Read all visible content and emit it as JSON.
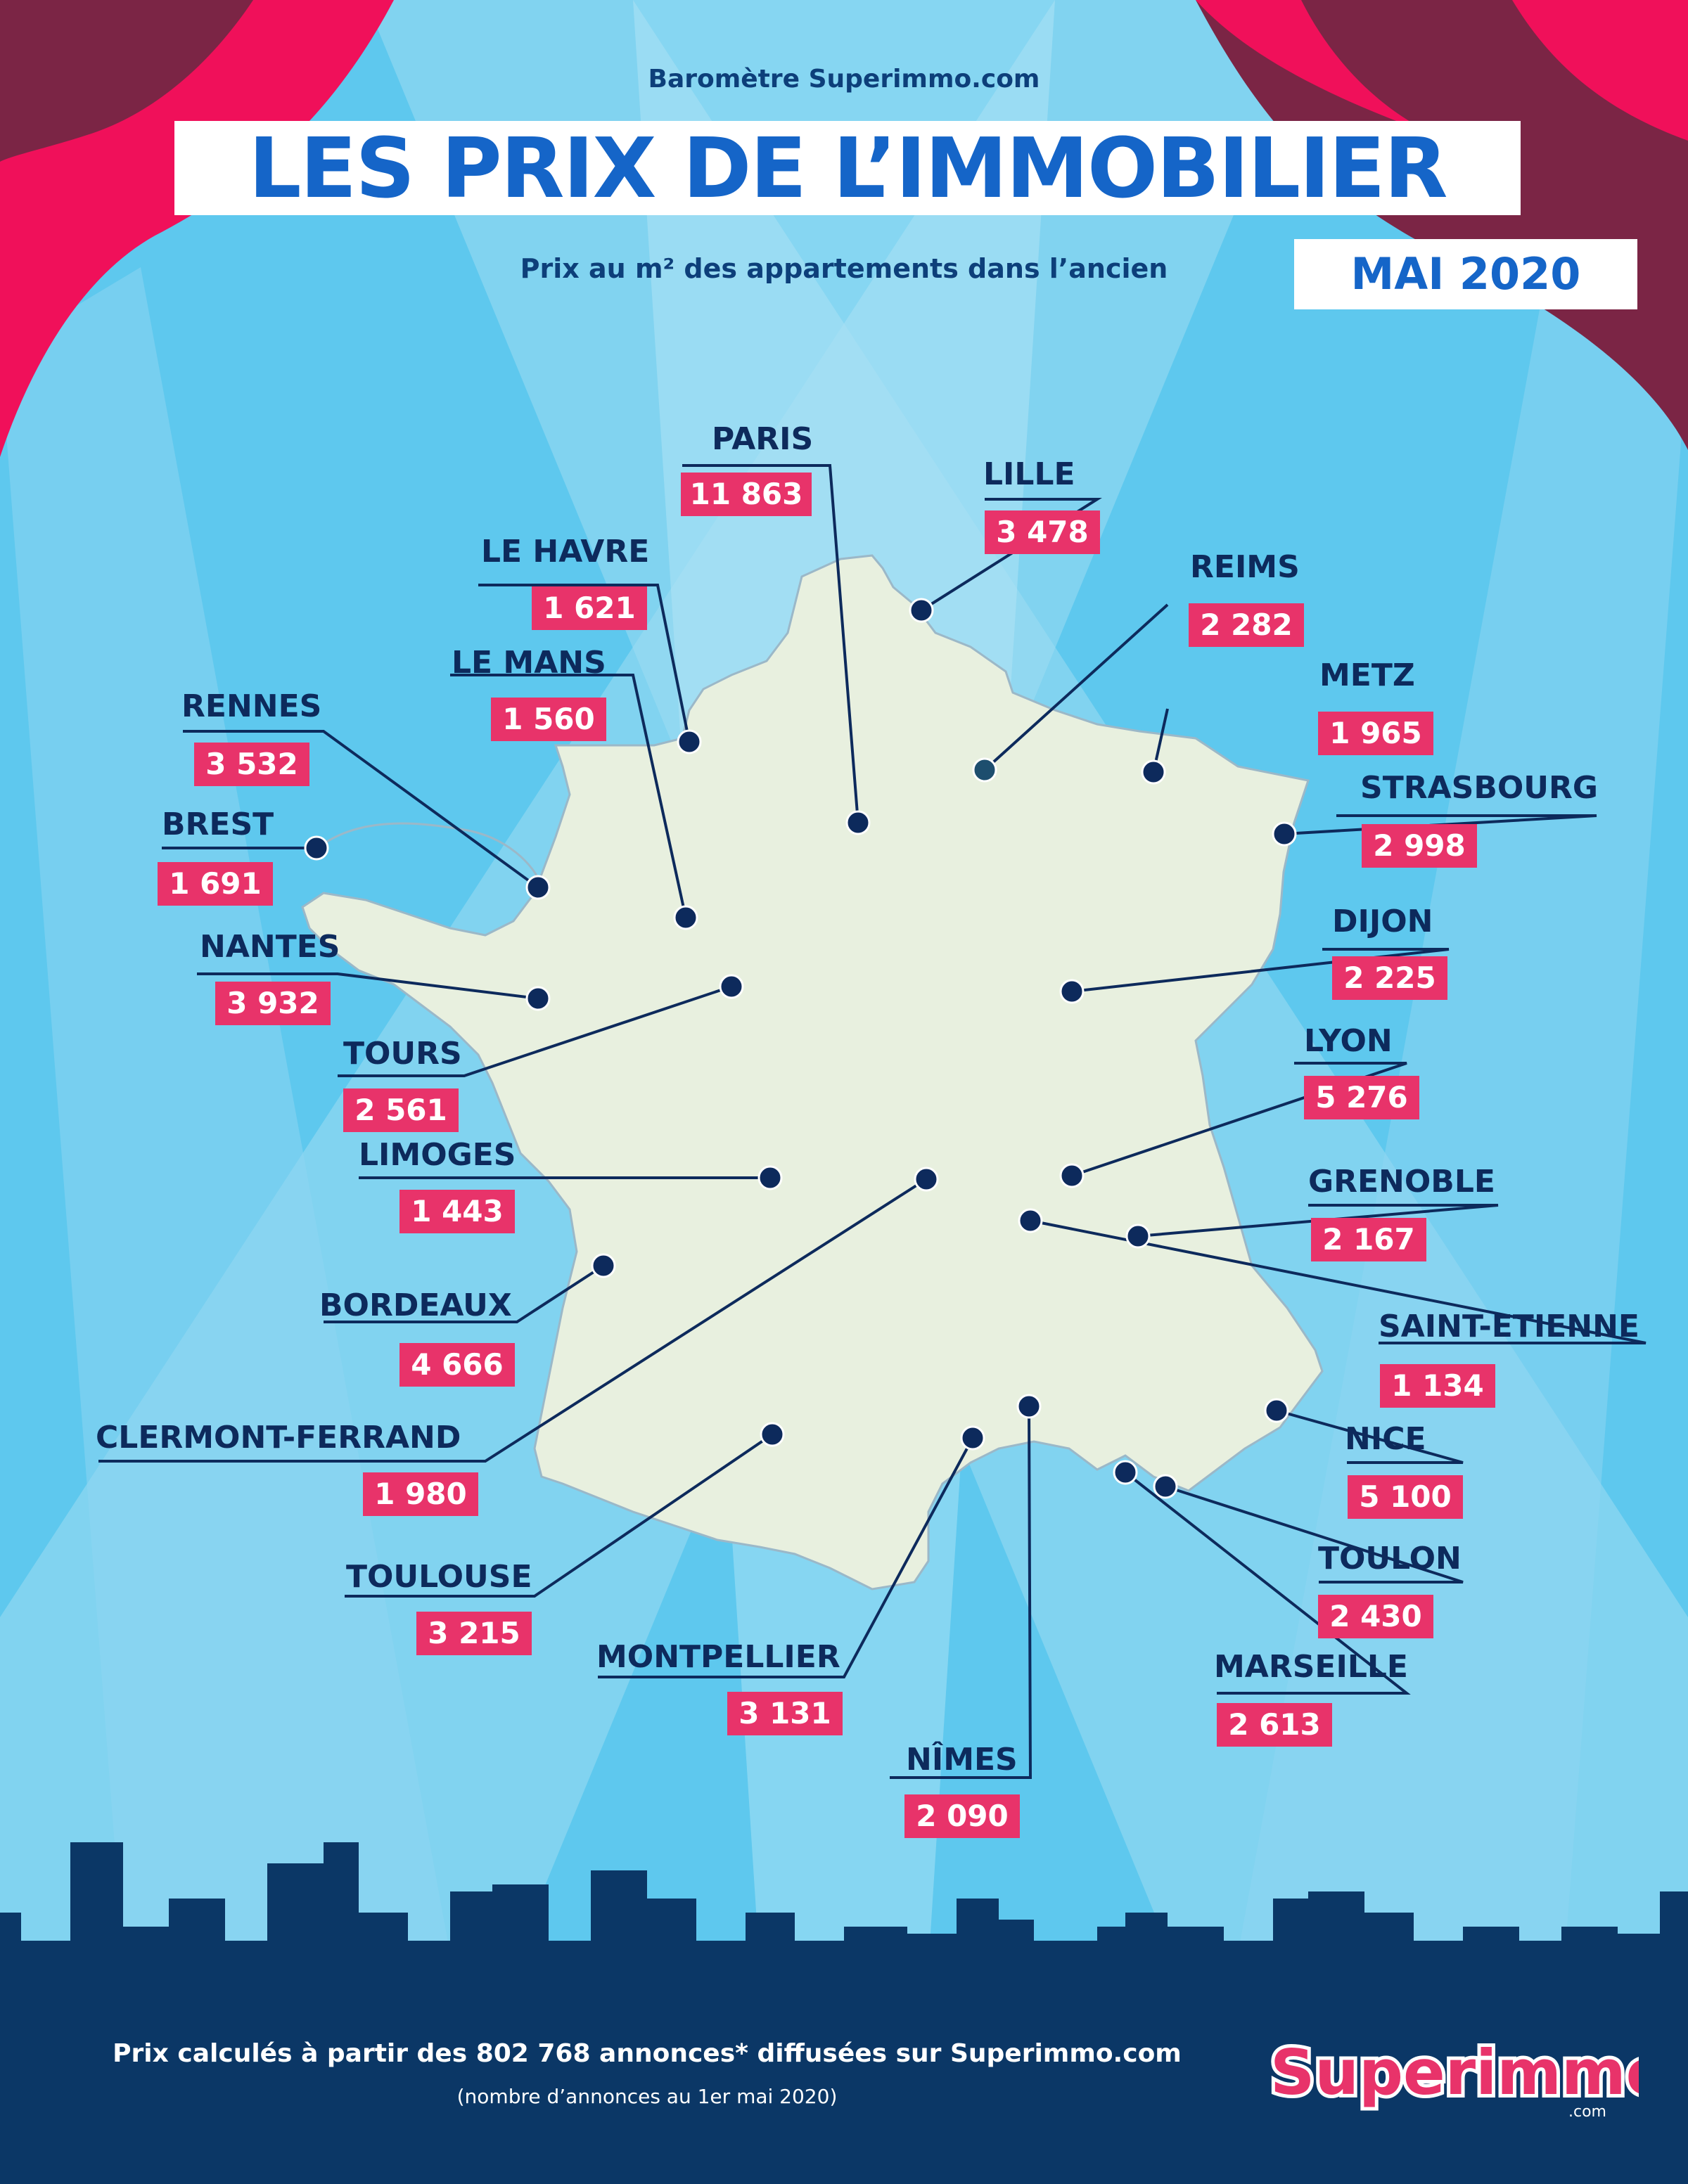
{
  "header": {
    "kicker": "Baromètre Superimmo.com",
    "title": "LES PRIX DE L’IMMOBILIER",
    "subtitle": "Prix au m² des appartements dans l’ancien",
    "date": "MAI 2020"
  },
  "colors": {
    "background": "#5ec8ee",
    "title_blue": "#1565c8",
    "navy": "#0d2a5c",
    "price_badge": "#e8336a",
    "map_fill": "#e8f0df",
    "curtain_pink": "#f0105a",
    "curtain_maroon": "#7b2545",
    "skyline": "#0b3766"
  },
  "cities": [
    {
      "name": "PARIS",
      "price": "11 863"
    },
    {
      "name": "LILLE",
      "price": "3 478"
    },
    {
      "name": "LE HAVRE",
      "price": "1 621"
    },
    {
      "name": "REIMS",
      "price": "2 282"
    },
    {
      "name": "LE MANS",
      "price": "1 560"
    },
    {
      "name": "METZ",
      "price": "1 965"
    },
    {
      "name": "RENNES",
      "price": "3 532"
    },
    {
      "name": "STRASBOURG",
      "price": "2 998"
    },
    {
      "name": "BREST",
      "price": "1 691"
    },
    {
      "name": "NANTES",
      "price": "3 932"
    },
    {
      "name": "DIJON",
      "price": "2 225"
    },
    {
      "name": "TOURS",
      "price": "2 561"
    },
    {
      "name": "LYON",
      "price": "5 276"
    },
    {
      "name": "LIMOGES",
      "price": "1 443"
    },
    {
      "name": "GRENOBLE",
      "price": "2 167"
    },
    {
      "name": "BORDEAUX",
      "price": "4 666"
    },
    {
      "name": "SAINT-ETIENNE",
      "price": "1 134"
    },
    {
      "name": "CLERMONT-FERRAND",
      "price": "1 980"
    },
    {
      "name": "NICE",
      "price": "5 100"
    },
    {
      "name": "TOULOUSE",
      "price": "3 215"
    },
    {
      "name": "TOULON",
      "price": "2 430"
    },
    {
      "name": "MONTPELLIER",
      "price": "3 131"
    },
    {
      "name": "MARSEILLE",
      "price": "2 613"
    },
    {
      "name": "NÎMES",
      "price": "2 090"
    }
  ],
  "footer": {
    "note": "Prix calculés à partir des 802 768 annonces* diffusées sur Superimmo.com",
    "sub": "(nombre d’annonces au 1er mai 2020)"
  },
  "logo": {
    "text": "Superimmo",
    "domain": ".com"
  }
}
